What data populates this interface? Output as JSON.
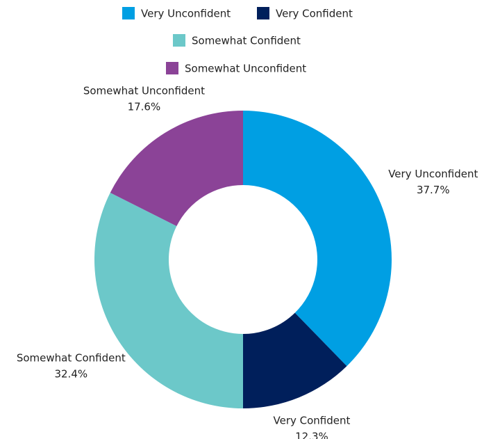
{
  "chart_data": {
    "type": "donut",
    "categories": [
      "Very Unconfident",
      "Very Confident",
      "Somewhat Confident",
      "Somewhat Unconfident"
    ],
    "values": [
      37.7,
      12.3,
      32.4,
      17.6
    ],
    "value_labels": [
      "37.7%",
      "12.3%",
      "32.4%",
      "17.6%"
    ],
    "colors": [
      "#009fe3",
      "#001f5b",
      "#6cc8c9",
      "#8b4397"
    ],
    "legend": "top"
  }
}
